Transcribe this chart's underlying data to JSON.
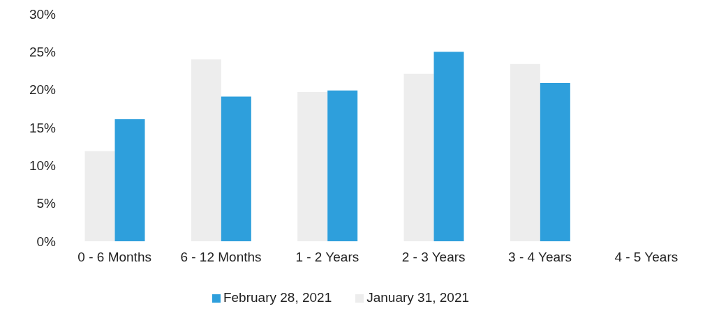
{
  "chart_data": {
    "type": "bar",
    "categories": [
      "0 - 6 Months",
      "6 - 12 Months",
      "1 - 2 Years",
      "2 - 3 Years",
      "3 - 4 Years",
      "4 - 5 Years"
    ],
    "series": [
      {
        "name": "January 31, 2021",
        "color": "#ededed",
        "values": [
          11.9,
          24.0,
          19.7,
          22.1,
          23.4,
          0
        ]
      },
      {
        "name": "February 28, 2021",
        "color": "#2e9fdc",
        "values": [
          16.1,
          19.1,
          19.9,
          25.0,
          20.9,
          0
        ]
      }
    ],
    "ylim": [
      0,
      30
    ],
    "yticks": [
      {
        "value": 0,
        "label": "0%"
      },
      {
        "value": 5,
        "label": "5%"
      },
      {
        "value": 10,
        "label": "10%"
      },
      {
        "value": 15,
        "label": "15%"
      },
      {
        "value": 20,
        "label": "20%"
      },
      {
        "value": 25,
        "label": "25%"
      },
      {
        "value": 30,
        "label": "30%"
      }
    ],
    "grid": false,
    "legend": "bottom"
  }
}
